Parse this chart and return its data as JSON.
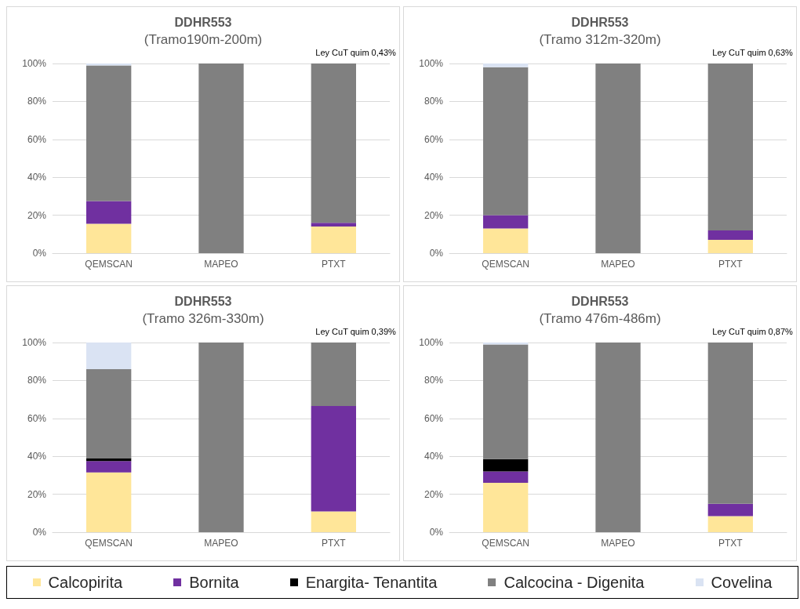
{
  "chart_data": [
    {
      "type": "bar",
      "stacked": true,
      "title": "DDHR553",
      "subtitle": "(Tramo190m-200m)",
      "annotations": [
        "Ley CuT quim 0,43%"
      ],
      "categories": [
        "QEMSCAN",
        "MAPEO",
        "PTXT"
      ],
      "ylim": [
        0,
        100
      ],
      "yticks": [
        {
          "value": 0,
          "label": "0%"
        },
        {
          "value": 20,
          "label": "20%"
        },
        {
          "value": 40,
          "label": "40%"
        },
        {
          "value": 60,
          "label": "60%"
        },
        {
          "value": 80,
          "label": "80%"
        },
        {
          "value": 100,
          "label": "100%"
        }
      ],
      "grid": "y",
      "legend": "bottom",
      "series": [
        {
          "name": "Calcopirita",
          "color": "#ffe699",
          "values": [
            15.5,
            0,
            14
          ]
        },
        {
          "name": "Bornita",
          "color": "#7030a0",
          "values": [
            12,
            0,
            2
          ]
        },
        {
          "name": "Enargita- Tenantita",
          "color": "#000000",
          "values": [
            0,
            0,
            0
          ]
        },
        {
          "name": "Calcocina - Digenita",
          "color": "#808080",
          "values": [
            71.5,
            100,
            84
          ]
        },
        {
          "name": "Covelina",
          "color": "#dae3f3",
          "values": [
            1,
            0,
            0
          ]
        }
      ]
    },
    {
      "type": "bar",
      "stacked": true,
      "title": "DDHR553",
      "subtitle": "(Tramo 312m-320m)",
      "annotations": [
        "Ley CuT quim 0,63%"
      ],
      "categories": [
        "QEMSCAN",
        "MAPEO",
        "PTXT"
      ],
      "ylim": [
        0,
        100
      ],
      "yticks": [
        {
          "value": 0,
          "label": "0%"
        },
        {
          "value": 20,
          "label": "20%"
        },
        {
          "value": 40,
          "label": "40%"
        },
        {
          "value": 60,
          "label": "60%"
        },
        {
          "value": 80,
          "label": "80%"
        },
        {
          "value": 100,
          "label": "100%"
        }
      ],
      "grid": "y",
      "series": [
        {
          "color": "#ffe699",
          "values": [
            13,
            0,
            7
          ]
        },
        {
          "color": "#7030a0",
          "values": [
            7,
            0,
            5
          ]
        },
        {
          "color": "#000000",
          "values": [
            0,
            0,
            0
          ]
        },
        {
          "color": "#808080",
          "values": [
            78,
            100,
            88
          ]
        },
        {
          "color": "#dae3f3",
          "values": [
            2,
            0,
            0
          ]
        }
      ]
    },
    {
      "type": "bar",
      "stacked": true,
      "title": "DDHR553",
      "subtitle": "(Tramo 326m-330m)",
      "annotations": [
        "Ley CuT quim 0,39%"
      ],
      "categories": [
        "QEMSCAN",
        "MAPEO",
        "PTXT"
      ],
      "ylim": [
        0,
        100
      ],
      "yticks": [
        {
          "value": 0,
          "label": "0%"
        },
        {
          "value": 20,
          "label": "20%"
        },
        {
          "value": 40,
          "label": "40%"
        },
        {
          "value": 60,
          "label": "60%"
        },
        {
          "value": 80,
          "label": "80%"
        },
        {
          "value": 100,
          "label": "100%"
        }
      ],
      "grid": "y",
      "series": [
        {
          "color": "#ffe699",
          "values": [
            31.5,
            0,
            11
          ]
        },
        {
          "color": "#7030a0",
          "values": [
            6,
            0,
            55.5
          ]
        },
        {
          "color": "#000000",
          "values": [
            1.5,
            0,
            0
          ]
        },
        {
          "color": "#808080",
          "values": [
            47,
            100,
            33.5
          ]
        },
        {
          "color": "#dae3f3",
          "values": [
            14,
            0,
            0
          ]
        }
      ]
    },
    {
      "type": "bar",
      "stacked": true,
      "title": "DDHR553",
      "subtitle": "(Tramo 476m-486m)",
      "annotations": [
        "Ley CuT quim 0,87%"
      ],
      "categories": [
        "QEMSCAN",
        "MAPEO",
        "PTXT"
      ],
      "ylim": [
        0,
        100
      ],
      "yticks": [
        {
          "value": 0,
          "label": "0%"
        },
        {
          "value": 20,
          "label": "20%"
        },
        {
          "value": 40,
          "label": "40%"
        },
        {
          "value": 60,
          "label": "60%"
        },
        {
          "value": 80,
          "label": "80%"
        },
        {
          "value": 100,
          "label": "100%"
        }
      ],
      "grid": "y",
      "series": [
        {
          "color": "#ffe699",
          "values": [
            26,
            0,
            8.5
          ]
        },
        {
          "color": "#7030a0",
          "values": [
            6,
            0,
            6.5
          ]
        },
        {
          "color": "#000000",
          "values": [
            6.5,
            0,
            0
          ]
        },
        {
          "color": "#808080",
          "values": [
            60.5,
            100,
            85
          ]
        },
        {
          "color": "#dae3f3",
          "values": [
            1,
            0,
            0
          ]
        }
      ]
    }
  ]
}
